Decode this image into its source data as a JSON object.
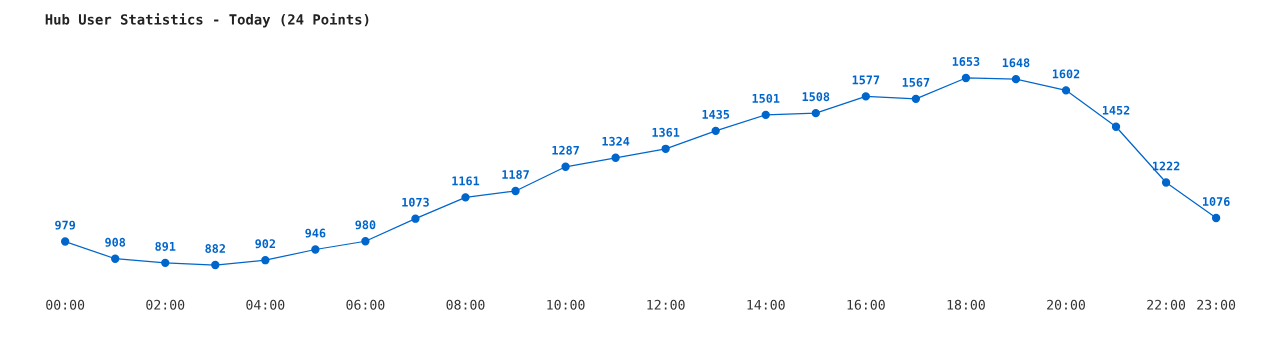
{
  "chart_data": {
    "type": "line",
    "title": "Hub User Statistics - Today (24 Points)",
    "categories": [
      "00:00",
      null,
      "02:00",
      null,
      "04:00",
      null,
      "06:00",
      null,
      "08:00",
      null,
      "10:00",
      null,
      "12:00",
      null,
      "14:00",
      null,
      "16:00",
      null,
      "18:00",
      null,
      "20:00",
      null,
      "22:00",
      "23:00"
    ],
    "series": [
      {
        "color": "#0066cc",
        "values": [
          979,
          908,
          891,
          882,
          902,
          946,
          980,
          1073,
          1161,
          1187,
          1287,
          1324,
          1361,
          1435,
          1501,
          1508,
          1577,
          1567,
          1653,
          1648,
          1602,
          1452,
          1222,
          1076
        ]
      }
    ],
    "data_labels": true,
    "marker": "circle",
    "line_style": "solid",
    "grid": false,
    "legend": false
  }
}
